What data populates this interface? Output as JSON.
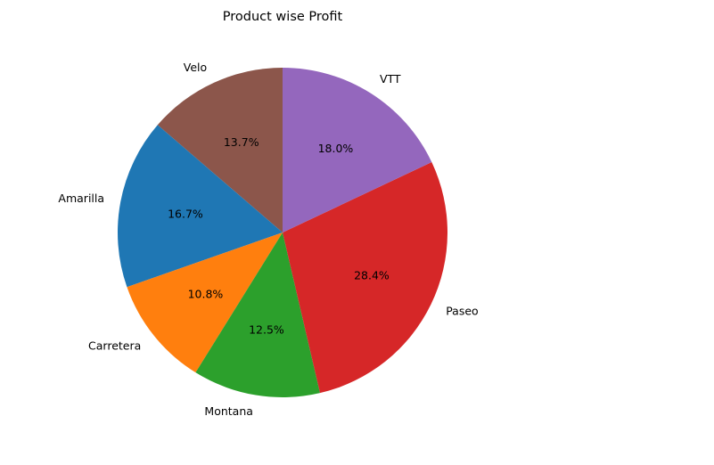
{
  "chart_data": {
    "type": "pie",
    "title": "Product wise Profit",
    "start_angle_deg": 90,
    "direction": "counterclockwise",
    "slices": [
      {
        "label": "Velo",
        "value": 13.7,
        "pct_label": "13.7%",
        "color": "#8c564b"
      },
      {
        "label": "Amarilla",
        "value": 16.7,
        "pct_label": "16.7%",
        "color": "#1f77b4"
      },
      {
        "label": "Carretera",
        "value": 10.8,
        "pct_label": "10.8%",
        "color": "#ff7f0e"
      },
      {
        "label": "Montana",
        "value": 12.5,
        "pct_label": "12.5%",
        "color": "#2ca02c"
      },
      {
        "label": "Paseo",
        "value": 28.4,
        "pct_label": "28.4%",
        "color": "#d62728"
      },
      {
        "label": "VTT",
        "value": 18.0,
        "pct_label": "18.0%",
        "color": "#9467bd"
      }
    ]
  }
}
